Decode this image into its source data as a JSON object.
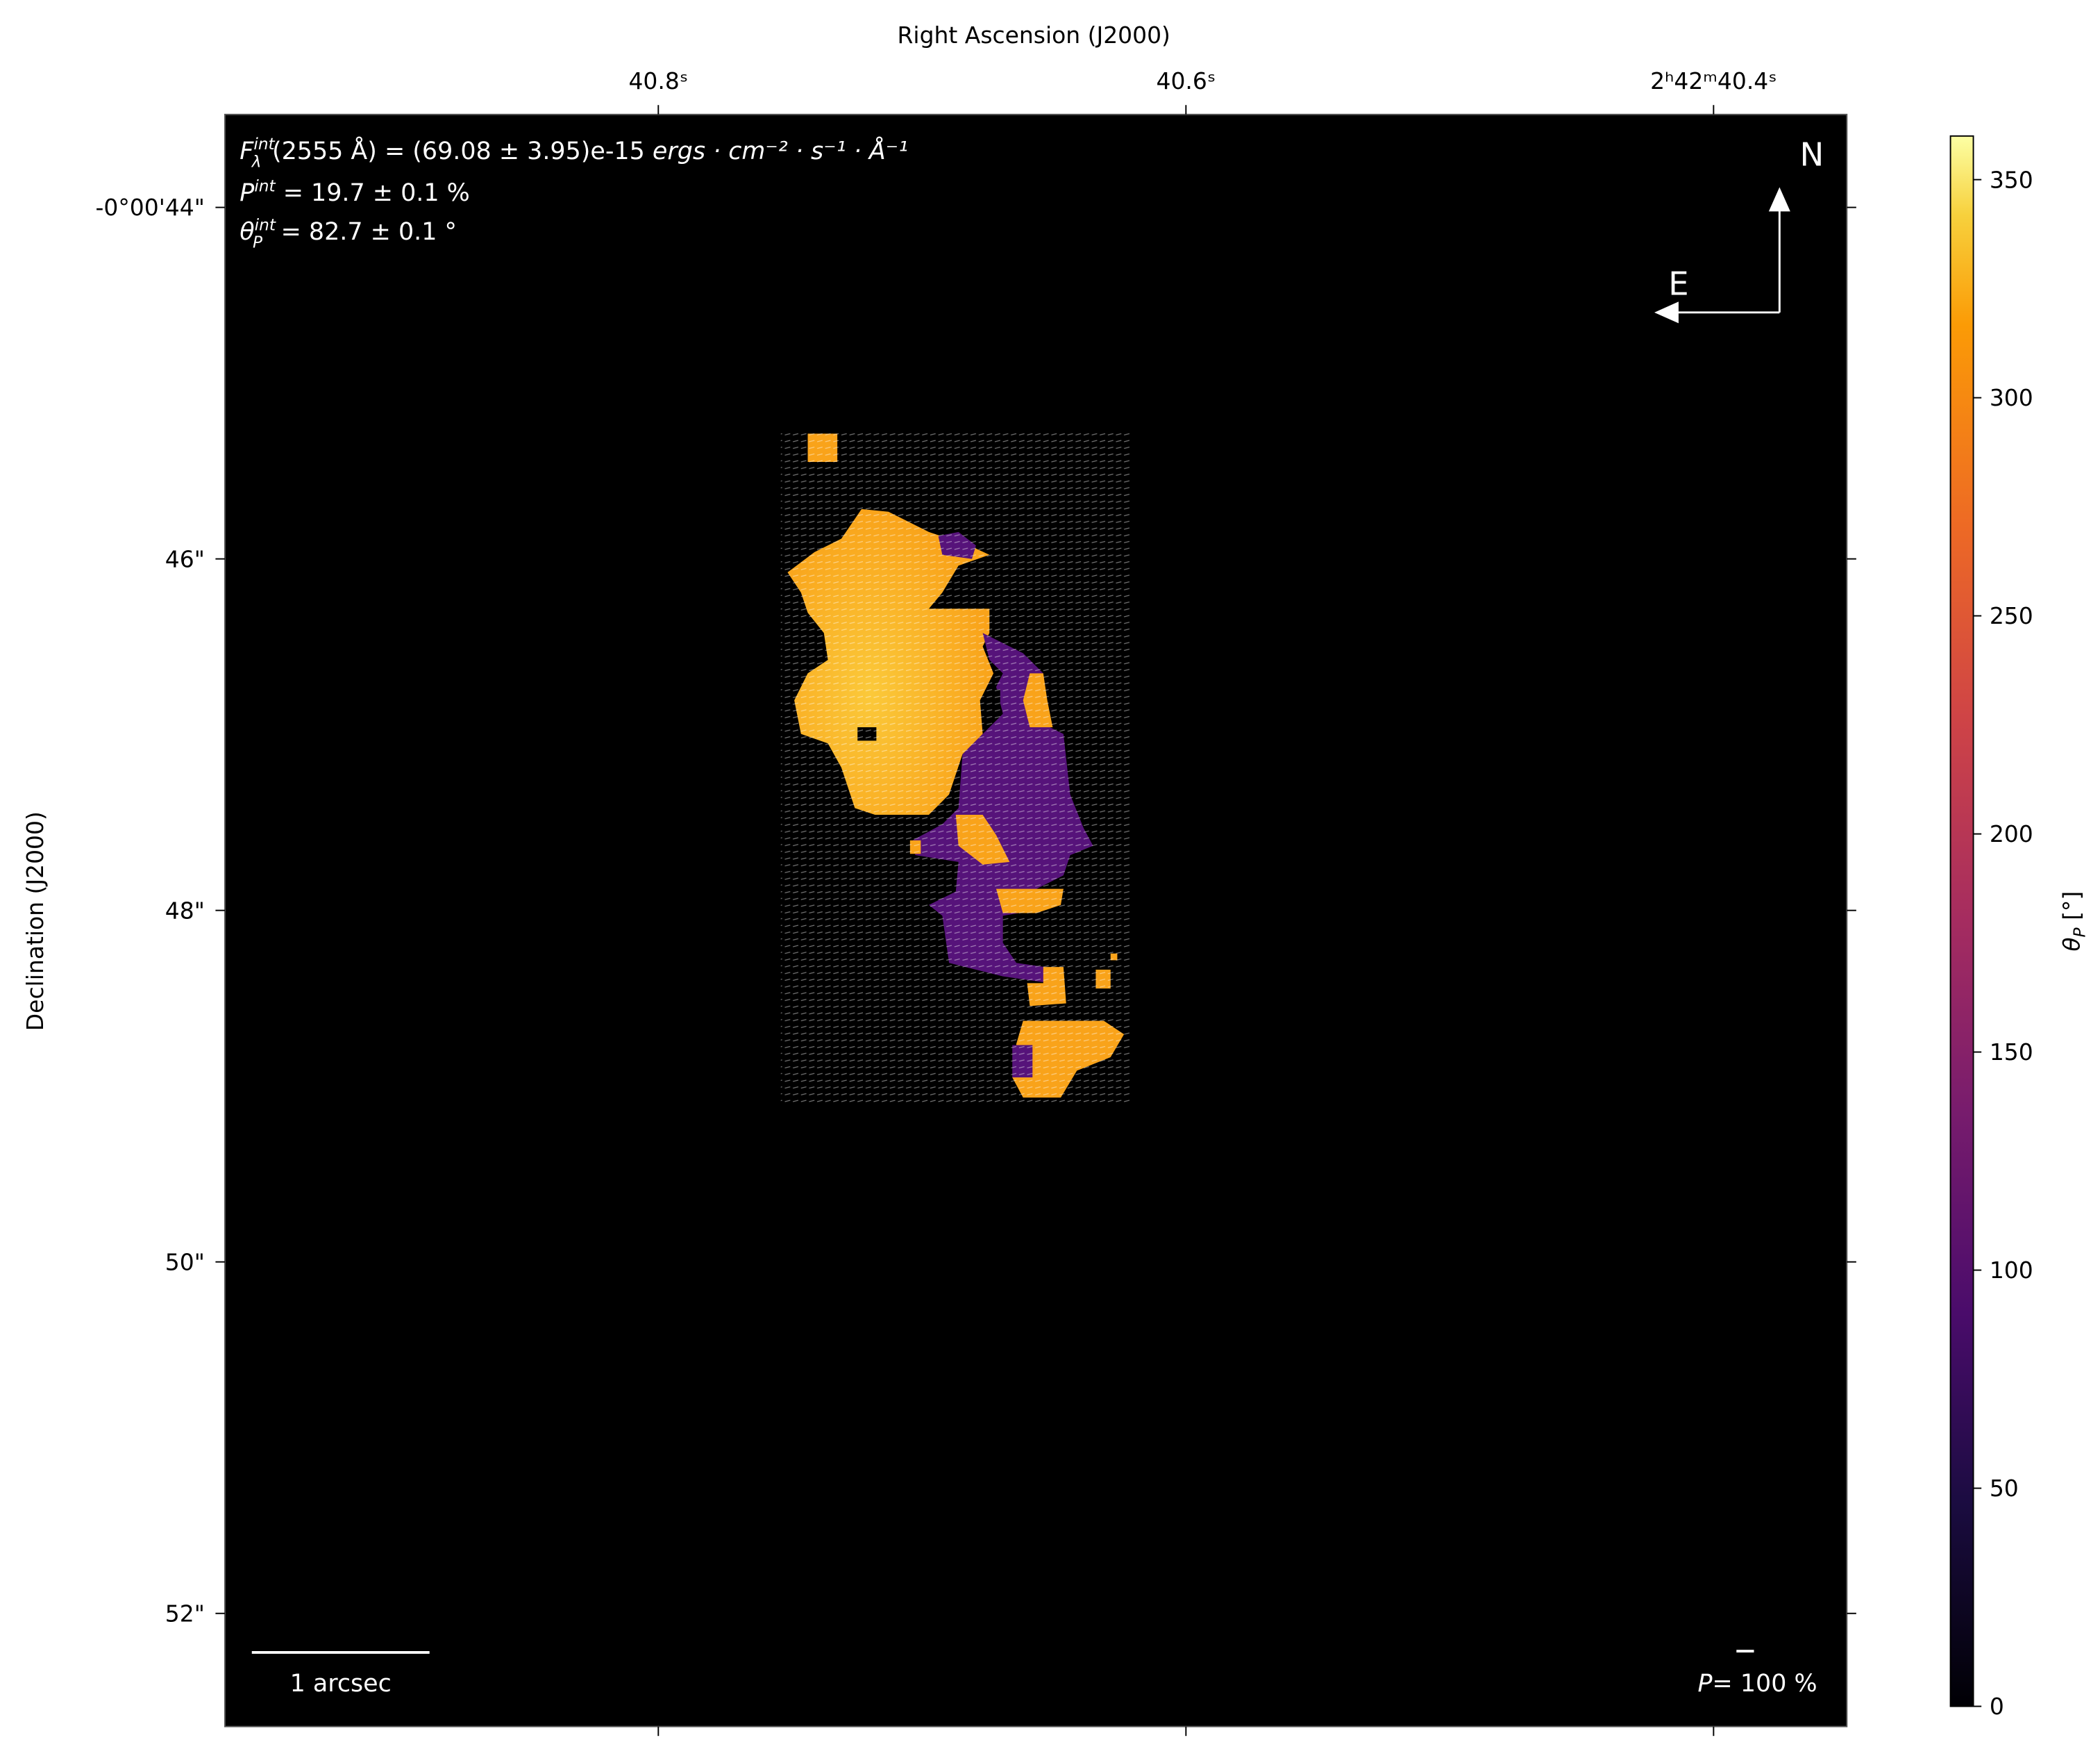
{
  "chart_data": {
    "type": "heatmap",
    "xlabel": "Right Ascension (J2000)",
    "ylabel": "Declination (J2000)",
    "x_ticks": [
      "40.8ˢ",
      "40.6ˢ",
      "2ʰ42ᵐ40.4ˢ"
    ],
    "y_ticks": [
      "-0°00'44\"",
      "46\"",
      "48\"",
      "50\"",
      "52\""
    ],
    "colorbar": {
      "label_symbol": "θ",
      "label_sub": "P",
      "label_unit": " [°]",
      "range": [
        0,
        360
      ],
      "ticks": [
        "0",
        "50",
        "100",
        "150",
        "200",
        "250",
        "300",
        "350"
      ],
      "colormap": "inferno"
    },
    "background_color": "#000000",
    "region_colors": {
      "orange": "#f9a31a",
      "purple": "#56137a"
    },
    "annotations": {
      "flux": {
        "symbol": "F",
        "sup": "int",
        "sub": "λ",
        "text": "(2555 Å) = (69.08 ± 3.95)e-15 ",
        "units": "ergs · cm⁻² · s⁻¹ · Å⁻¹"
      },
      "pol": {
        "symbol": "P",
        "sup": "int",
        "text": " = 19.7 ± 0.1 %"
      },
      "angle": {
        "symbol": "θ",
        "sup": "int",
        "sub": "P",
        "text": " = 82.7 ± 0.1 °"
      }
    },
    "compass": {
      "north": "N",
      "east": "E"
    },
    "scale_bar": {
      "label": "1 arcsec"
    },
    "vector_scale": {
      "symbol": "P",
      "text": "= 100 %"
    }
  }
}
